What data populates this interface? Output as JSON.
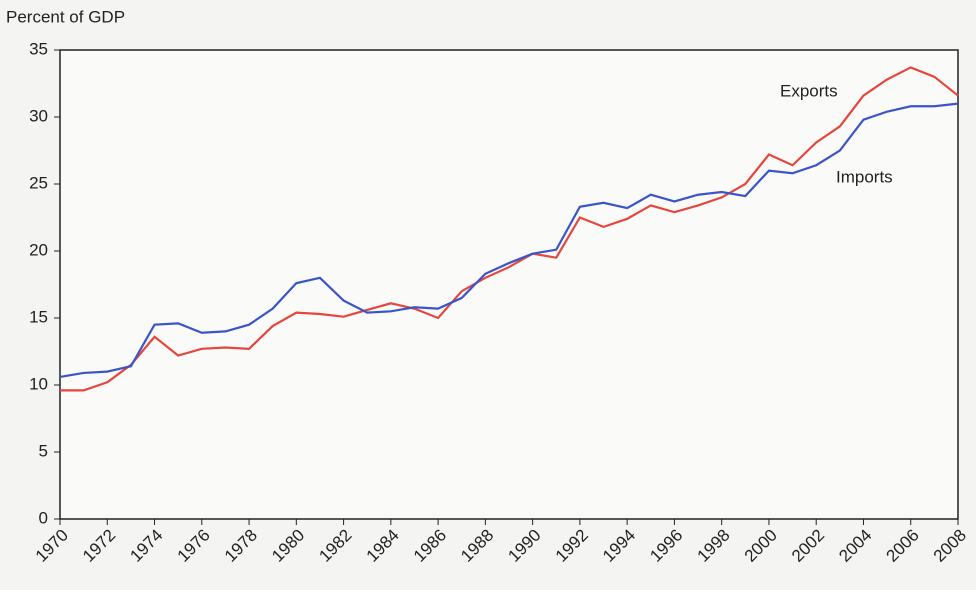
{
  "chart_data": {
    "type": "line",
    "y_axis_label": "Percent of GDP",
    "x": [
      1970,
      1971,
      1972,
      1973,
      1974,
      1975,
      1976,
      1977,
      1978,
      1979,
      1980,
      1981,
      1982,
      1983,
      1984,
      1985,
      1986,
      1987,
      1988,
      1989,
      1990,
      1991,
      1992,
      1993,
      1994,
      1995,
      1996,
      1997,
      1998,
      1999,
      2000,
      2001,
      2002,
      2003,
      2004,
      2005,
      2006,
      2007,
      2008
    ],
    "series": [
      {
        "name": "Exports",
        "color": "#e5463d",
        "values": [
          9.6,
          9.6,
          10.2,
          11.5,
          13.6,
          12.2,
          12.7,
          12.8,
          12.7,
          14.4,
          15.4,
          15.3,
          15.1,
          15.6,
          16.1,
          15.7,
          15.0,
          17.0,
          18.0,
          18.8,
          19.8,
          19.5,
          22.5,
          21.8,
          22.4,
          23.4,
          22.9,
          23.4,
          24.0,
          25.0,
          27.2,
          26.4,
          28.1,
          29.3,
          31.6,
          32.8,
          33.7,
          33.0,
          31.6
        ]
      },
      {
        "name": "Imports",
        "color": "#3b55c9",
        "values": [
          10.6,
          10.9,
          11.0,
          11.4,
          14.5,
          14.6,
          13.9,
          14.0,
          14.5,
          15.7,
          17.6,
          18.0,
          16.3,
          15.4,
          15.5,
          15.8,
          15.7,
          16.5,
          18.3,
          19.1,
          19.8,
          20.1,
          23.3,
          23.6,
          23.2,
          24.2,
          23.7,
          24.2,
          24.4,
          24.1,
          26.0,
          25.8,
          26.4,
          27.5,
          29.8,
          30.4,
          30.8,
          30.8,
          31.0
        ]
      }
    ],
    "xlim": [
      1970,
      2008
    ],
    "xticks": [
      1970,
      1972,
      1974,
      1976,
      1978,
      1980,
      1982,
      1984,
      1986,
      1988,
      1990,
      1992,
      1994,
      1996,
      1998,
      2000,
      2002,
      2004,
      2006,
      2008
    ],
    "ylim": [
      0,
      35
    ],
    "yticks": [
      0,
      5,
      10,
      15,
      20,
      25,
      30,
      35
    ],
    "grid": false
  }
}
